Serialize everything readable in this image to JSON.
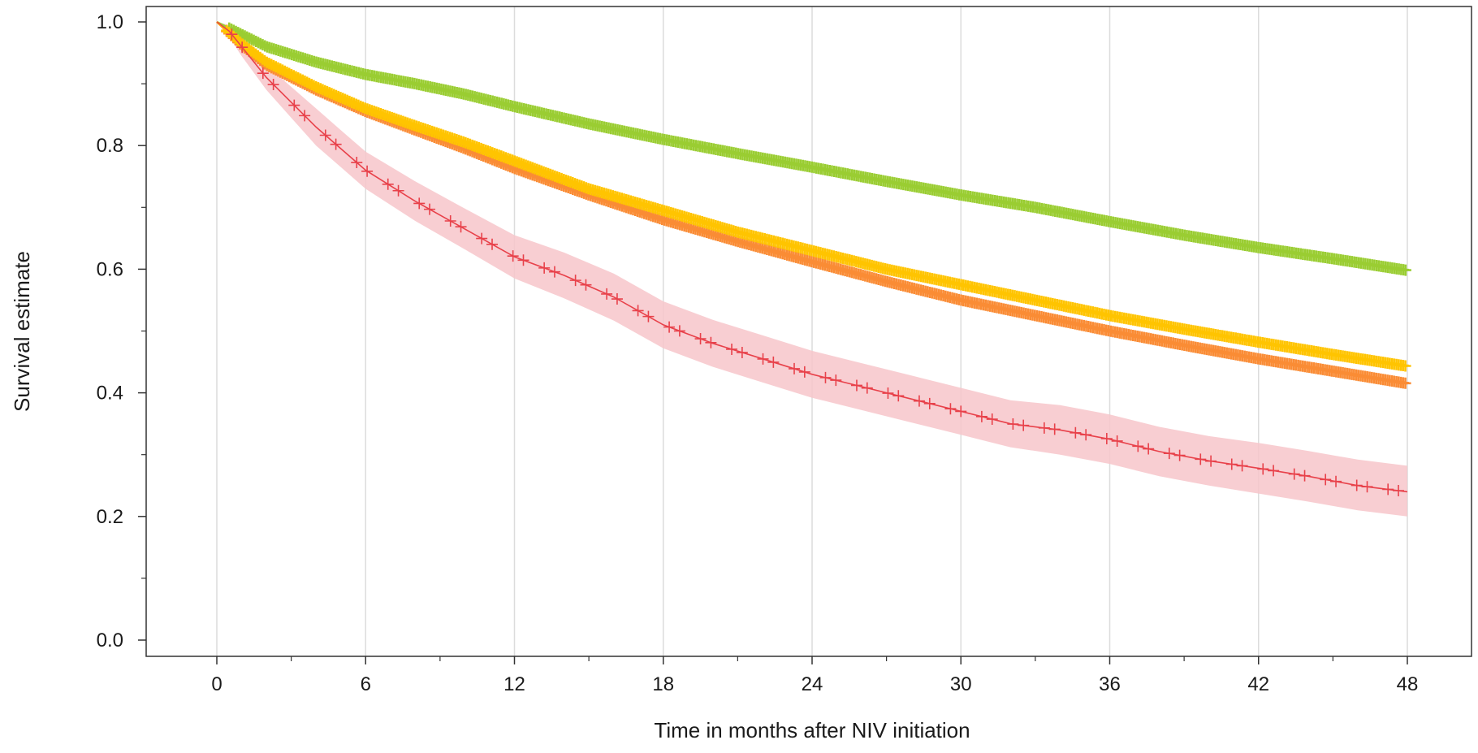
{
  "chart_data": {
    "type": "line",
    "subtype": "kaplan-meier survival curves with censoring marks",
    "title": "",
    "xlabel": "Time in months after NIV initiation",
    "ylabel": "Survival estimate",
    "xlim": [
      0,
      48
    ],
    "ylim": [
      0.0,
      1.0
    ],
    "xticks": [
      "0",
      "6",
      "12",
      "18",
      "24",
      "30",
      "36",
      "42",
      "48"
    ],
    "yticks": [
      "0.0",
      "0.2",
      "0.4",
      "0.6",
      "0.8",
      "1.0"
    ],
    "grid": "vertical",
    "legend": "none",
    "series": [
      {
        "color": "#9acd32",
        "x": [
          0,
          1,
          2,
          4,
          6,
          8,
          10,
          12,
          15,
          18,
          21,
          24,
          27,
          30,
          33,
          36,
          39,
          42,
          45,
          48
        ],
        "y": [
          1.0,
          0.98,
          0.96,
          0.935,
          0.915,
          0.9,
          0.883,
          0.863,
          0.835,
          0.81,
          0.787,
          0.765,
          0.742,
          0.72,
          0.7,
          0.677,
          0.655,
          0.635,
          0.617,
          0.598
        ]
      },
      {
        "color": "#ffc400",
        "x": [
          0,
          1,
          2,
          4,
          6,
          8,
          10,
          12,
          15,
          18,
          21,
          24,
          27,
          30,
          33,
          36,
          39,
          42,
          45,
          48
        ],
        "y": [
          1.0,
          0.965,
          0.935,
          0.895,
          0.86,
          0.832,
          0.805,
          0.775,
          0.73,
          0.695,
          0.66,
          0.63,
          0.6,
          0.575,
          0.55,
          0.525,
          0.503,
          0.482,
          0.462,
          0.443
        ]
      },
      {
        "color": "#fa8c35",
        "x": [
          0,
          1,
          2,
          4,
          6,
          8,
          10,
          12,
          15,
          18,
          21,
          24,
          27,
          30,
          33,
          36,
          39,
          42,
          45,
          48
        ],
        "y": [
          1.0,
          0.962,
          0.93,
          0.89,
          0.855,
          0.825,
          0.795,
          0.763,
          0.72,
          0.68,
          0.645,
          0.612,
          0.58,
          0.55,
          0.525,
          0.5,
          0.477,
          0.455,
          0.435,
          0.415
        ]
      },
      {
        "color": "#e8414a",
        "band_color": "#f7c6ca",
        "x": [
          0,
          0.5,
          1,
          2,
          3,
          4,
          5,
          6,
          8,
          10,
          12,
          14,
          16,
          18,
          20,
          22,
          24,
          26,
          28,
          30,
          32,
          34,
          36,
          38,
          40,
          42,
          44,
          46,
          48
        ],
        "y": [
          1.0,
          0.985,
          0.96,
          0.91,
          0.87,
          0.83,
          0.795,
          0.76,
          0.71,
          0.665,
          0.62,
          0.59,
          0.555,
          0.51,
          0.48,
          0.455,
          0.43,
          0.41,
          0.39,
          0.37,
          0.35,
          0.34,
          0.325,
          0.305,
          0.29,
          0.278,
          0.265,
          0.25,
          0.24
        ],
        "ci_lower": [
          1.0,
          0.975,
          0.945,
          0.89,
          0.845,
          0.8,
          0.765,
          0.73,
          0.678,
          0.632,
          0.585,
          0.553,
          0.517,
          0.472,
          0.442,
          0.417,
          0.392,
          0.372,
          0.352,
          0.332,
          0.312,
          0.3,
          0.285,
          0.265,
          0.25,
          0.237,
          0.224,
          0.21,
          0.2
        ],
        "ci_upper": [
          1.0,
          0.995,
          0.975,
          0.93,
          0.895,
          0.86,
          0.825,
          0.79,
          0.742,
          0.698,
          0.655,
          0.627,
          0.593,
          0.548,
          0.518,
          0.493,
          0.468,
          0.448,
          0.428,
          0.408,
          0.388,
          0.38,
          0.365,
          0.345,
          0.33,
          0.319,
          0.306,
          0.292,
          0.282
        ]
      }
    ]
  }
}
